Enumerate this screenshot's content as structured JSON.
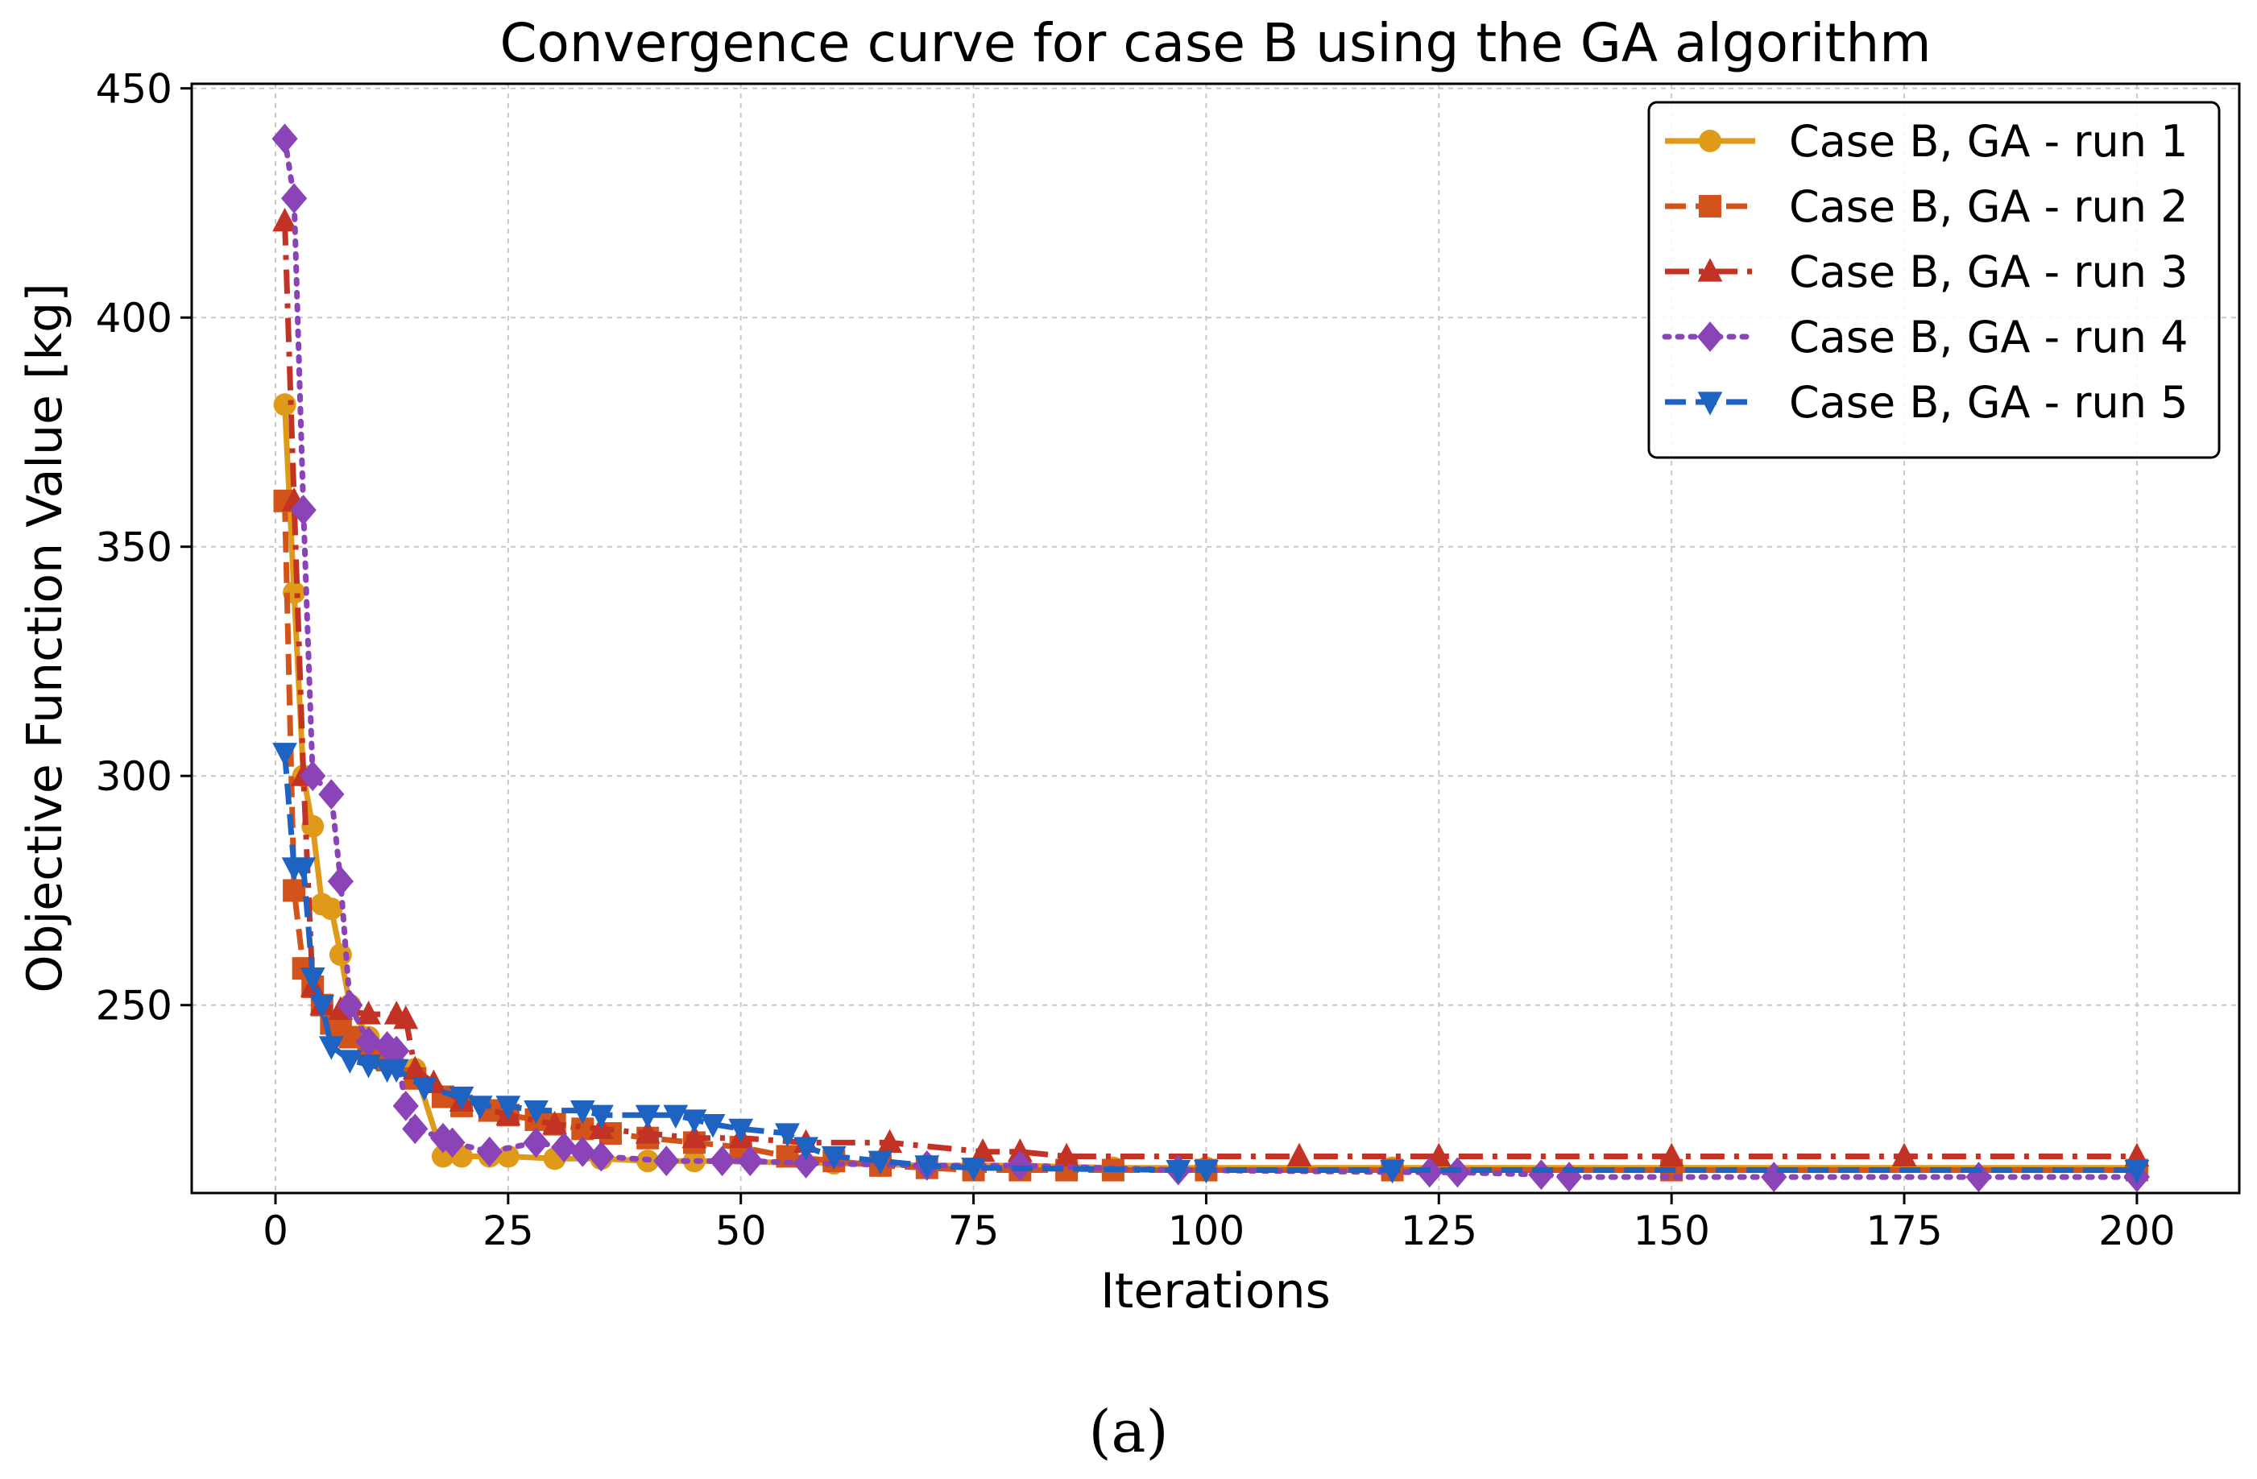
{
  "chart_data": {
    "type": "line",
    "title": "Convergence curve for case B using the GA algorithm",
    "xlabel": "Iterations",
    "ylabel": "Objective Function Value [kg]",
    "xlim": [
      -9,
      211
    ],
    "ylim": [
      209,
      451
    ],
    "xticks": [
      0,
      25,
      50,
      75,
      100,
      125,
      150,
      175,
      200
    ],
    "yticks": [
      250,
      300,
      350,
      400,
      450
    ],
    "grid": true,
    "legend_position": "top-right",
    "series": [
      {
        "name": "Case B, GA - run 1",
        "color": "#E09A1A",
        "marker": "circle",
        "line": "solid",
        "x": [
          1,
          2,
          3,
          4,
          5,
          6,
          7,
          8,
          10,
          12,
          15,
          18,
          20,
          23,
          25,
          30,
          35,
          40,
          45,
          60,
          70,
          80,
          90,
          100,
          120,
          150,
          200
        ],
        "y": [
          381,
          340,
          300,
          289,
          272,
          271,
          261,
          250,
          243,
          240,
          236,
          217,
          217,
          217,
          217,
          216.5,
          216.5,
          216,
          216,
          215.5,
          215,
          215,
          214.5,
          214.5,
          214.5,
          214.5,
          214.5
        ]
      },
      {
        "name": "Case B, GA - run 2",
        "color": "#D2541B",
        "marker": "square",
        "line": "dashed",
        "x": [
          1,
          2,
          3,
          4,
          5,
          6,
          7,
          8,
          10,
          12,
          15,
          18,
          20,
          23,
          25,
          28,
          30,
          33,
          36,
          40,
          45,
          50,
          55,
          60,
          65,
          70,
          75,
          80,
          85,
          90,
          100,
          120,
          150,
          200
        ],
        "y": [
          360,
          275,
          258,
          254,
          250,
          246,
          245,
          243,
          240,
          238,
          234,
          230,
          228,
          227,
          226,
          225,
          224,
          223,
          222,
          221,
          220,
          219,
          217,
          216,
          215,
          214.5,
          214,
          214,
          214,
          214,
          214,
          214,
          214,
          214
        ]
      },
      {
        "name": "Case B, GA - run 3",
        "color": "#C23225",
        "marker": "triangle-up",
        "line": "dashdot",
        "x": [
          1,
          2,
          3,
          4,
          5,
          7,
          10,
          13,
          14,
          15,
          17,
          20,
          25,
          30,
          35,
          40,
          45,
          50,
          57,
          66,
          76,
          80,
          85,
          110,
          125,
          150,
          175,
          200
        ],
        "y": [
          421,
          360,
          300,
          254,
          250,
          249,
          248,
          248,
          247,
          236,
          233,
          229,
          226,
          224,
          223,
          222,
          221,
          221,
          220,
          220,
          218,
          218,
          217,
          217,
          217,
          217,
          217,
          217
        ]
      },
      {
        "name": "Case B, GA - run 4",
        "color": "#8A44B8",
        "marker": "diamond",
        "line": "dotted",
        "x": [
          1,
          2,
          3,
          4,
          6,
          7,
          8,
          10,
          12,
          13,
          14,
          15,
          18,
          19,
          23,
          28,
          31,
          33,
          35,
          42,
          48,
          51,
          57,
          70,
          80,
          97,
          124,
          127,
          136,
          139,
          161,
          183,
          200
        ],
        "y": [
          439,
          426,
          358,
          300,
          296,
          277,
          250,
          242,
          241,
          240,
          228,
          223,
          221,
          220,
          218,
          220,
          219,
          218,
          217,
          216,
          216,
          216,
          215.5,
          215,
          215,
          214,
          213.5,
          213.5,
          213,
          212.5,
          212.5,
          212.5,
          212.5
        ]
      },
      {
        "name": "Case B, GA - run 5",
        "color": "#1E62C2",
        "marker": "triangle-down",
        "line": "dashed",
        "x": [
          1,
          2,
          3,
          4,
          5,
          6,
          8,
          10,
          12,
          13,
          16,
          20,
          22,
          25,
          28,
          33,
          35,
          40,
          43,
          45,
          47,
          50,
          55,
          57,
          60,
          65,
          70,
          75,
          97,
          100,
          120,
          200
        ],
        "y": [
          305,
          280,
          280,
          256,
          250,
          241,
          238,
          237,
          236,
          236,
          232,
          230,
          228,
          228,
          227,
          227,
          226,
          226,
          226,
          225,
          224,
          223,
          222,
          219,
          217,
          216,
          215,
          214.5,
          214,
          214,
          214,
          214
        ]
      }
    ]
  },
  "caption": "(a)"
}
